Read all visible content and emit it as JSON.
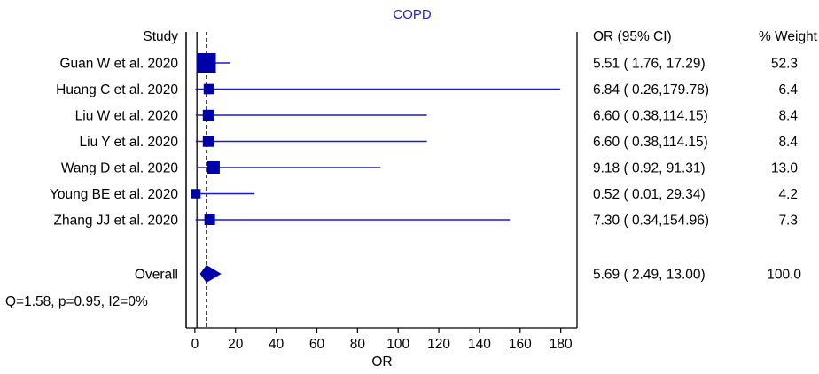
{
  "chart_data": {
    "type": "forest",
    "title": "COPD",
    "study_header": "Study",
    "or_header": "OR (95% CI)",
    "weight_header": "% Weight",
    "xlabel": "OR",
    "xlim": [
      -3,
      188
    ],
    "xticks": [
      0,
      20,
      40,
      60,
      80,
      100,
      120,
      140,
      160,
      180
    ],
    "null_line": 1,
    "pooled_line": 5.69,
    "studies": [
      {
        "label": "Guan W et al. 2020",
        "or": 5.51,
        "lo": 1.76,
        "hi": 17.29,
        "ci_text": "5.51 (  1.76, 17.29)",
        "weight": 52.3,
        "weight_text": "52.3"
      },
      {
        "label": "Huang C et al. 2020",
        "or": 6.84,
        "lo": 0.26,
        "hi": 179.78,
        "ci_text": "6.84 (  0.26,179.78)",
        "weight": 6.4,
        "weight_text": "6.4"
      },
      {
        "label": "Liu W et al. 2020",
        "or": 6.6,
        "lo": 0.38,
        "hi": 114.15,
        "ci_text": "6.60 (  0.38,114.15)",
        "weight": 8.4,
        "weight_text": "8.4"
      },
      {
        "label": "Liu Y et al. 2020",
        "or": 6.6,
        "lo": 0.38,
        "hi": 114.15,
        "ci_text": "6.60 (  0.38,114.15)",
        "weight": 8.4,
        "weight_text": "8.4"
      },
      {
        "label": "Wang D et al. 2020",
        "or": 9.18,
        "lo": 0.92,
        "hi": 91.31,
        "ci_text": "9.18 (  0.92, 91.31)",
        "weight": 13.0,
        "weight_text": "13.0"
      },
      {
        "label": "Young BE et al. 2020",
        "or": 0.52,
        "lo": 0.01,
        "hi": 29.34,
        "ci_text": "0.52 (  0.01, 29.34)",
        "weight": 4.2,
        "weight_text": "4.2"
      },
      {
        "label": "Zhang JJ et al. 2020",
        "or": 7.3,
        "lo": 0.34,
        "hi": 154.96,
        "ci_text": "7.30 (  0.34,154.96)",
        "weight": 7.3,
        "weight_text": "7.3"
      }
    ],
    "overall": {
      "label": "Overall",
      "or": 5.69,
      "lo": 2.49,
      "hi": 13.0,
      "ci_text": "5.69 (  2.49, 13.00)",
      "weight_text": "100.0"
    },
    "heterogeneity": "Q=1.58, p=0.95, I2=0%",
    "colors": {
      "marker": "#0000aa",
      "line": "#1a1acc",
      "title": "#2323d6",
      "axis": "#000000"
    }
  }
}
